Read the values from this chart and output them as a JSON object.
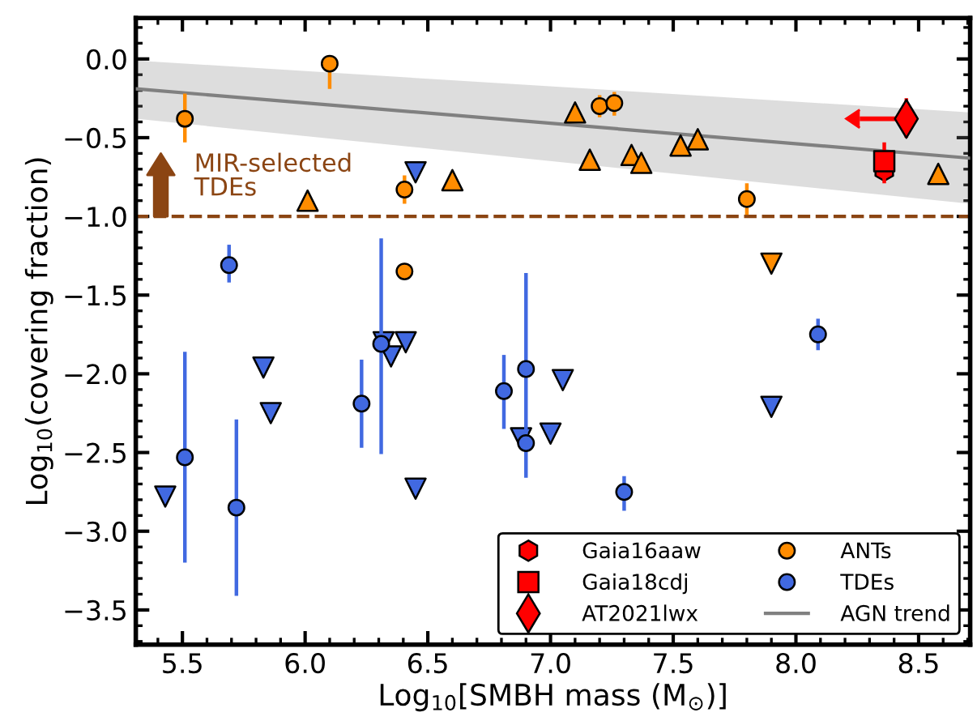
{
  "chart_data": {
    "type": "scatter",
    "xlabel": "Log$_{10}$[SMBH mass (M$_{⊙}$)]",
    "ylabel": "Log$_{10}$(covering fraction)",
    "xlim": [
      5.31,
      8.71
    ],
    "ylim": [
      -3.72,
      0.26
    ],
    "xticks": [
      {
        "value": 5.5,
        "label": "5.5"
      },
      {
        "value": 6.0,
        "label": "6.0"
      },
      {
        "value": 6.5,
        "label": "6.5"
      },
      {
        "value": 7.0,
        "label": "7.0"
      },
      {
        "value": 7.5,
        "label": "7.5"
      },
      {
        "value": 8.0,
        "label": "8.0"
      },
      {
        "value": 8.5,
        "label": "8.5"
      }
    ],
    "yticks": [
      {
        "value": 0.0,
        "label": "0.0"
      },
      {
        "value": -0.5,
        "label": "−0.5"
      },
      {
        "value": -1.0,
        "label": "−1.0"
      },
      {
        "value": -1.5,
        "label": "−1.5"
      },
      {
        "value": -2.0,
        "label": "−2.0"
      },
      {
        "value": -2.5,
        "label": "−2.5"
      },
      {
        "value": -3.0,
        "label": "−3.0"
      },
      {
        "value": -3.5,
        "label": "−3.5"
      }
    ],
    "grid": false,
    "legend": "bottom right",
    "ref_lines": [
      {
        "axis": "y",
        "value": -1.0,
        "label": "MIR-selected\nTDEs",
        "color": "#8b4513",
        "line_style": "dashed"
      }
    ],
    "series": [
      {
        "name": "AGN trend",
        "type": "line",
        "color": "#808080",
        "marker": "none",
        "line_style": "solid",
        "x": [
          5.31,
          8.71
        ],
        "values": [
          -0.19,
          -0.63
        ],
        "lower": [
          -0.38,
          -0.92
        ],
        "upper": [
          -0.01,
          -0.34
        ]
      },
      {
        "color": "#ff8c00",
        "marker": "triangle",
        "x": [
          6.01,
          6.6,
          7.1,
          7.16,
          7.33,
          7.37,
          7.53,
          7.6,
          8.58
        ],
        "values": [
          -0.9,
          -0.77,
          -0.34,
          -0.64,
          -0.61,
          -0.66,
          -0.55,
          -0.51,
          -0.73
        ]
      },
      {
        "color": "#ff8c00",
        "marker": "triangle_down",
        "x": [
          7.9
        ],
        "values": [
          -1.3
        ]
      },
      {
        "color": "#4169e1",
        "marker": "triangle_down",
        "x": [
          5.43,
          5.83,
          5.86,
          6.32,
          6.35,
          6.41,
          6.45,
          6.45,
          6.88,
          7.0,
          7.05,
          7.9
        ],
        "values": [
          -2.78,
          -1.96,
          -2.25,
          -1.8,
          -1.89,
          -1.8,
          -2.73,
          -0.72,
          -2.41,
          -2.38,
          -2.04,
          -2.21
        ]
      },
      {
        "name": "Gaia16aaw",
        "color": "#ff0000",
        "x": [
          8.36
        ],
        "values": [
          -0.71
        ]
      },
      {
        "name": "Gaia18cdj",
        "color": "#ff0000",
        "marker": "square",
        "x": [
          8.36
        ],
        "values": [
          -0.65
        ],
        "errors": [
          [
            -0.79,
            -0.53
          ]
        ]
      },
      {
        "name": "AT2021lwx",
        "color": "#ff0000",
        "marker": "diamond",
        "x": [
          8.45
        ],
        "values": [
          -0.38
        ],
        "errors": [
          [
            -0.5,
            -0.25
          ]
        ],
        "xerrors": [
          [
            8.26,
            8.45
          ]
        ]
      },
      {
        "name": "ANTs",
        "color": "#ff8c00",
        "marker": "circle",
        "x": [
          5.51,
          6.1,
          6.405,
          6.405,
          7.2,
          7.26,
          7.8
        ],
        "values": [
          -0.38,
          -0.03,
          -0.83,
          -1.35,
          -0.3,
          -0.28,
          -0.89
        ],
        "errors": [
          [
            -0.53,
            -0.22
          ],
          [
            -0.19,
            -0.03
          ],
          [
            -0.92,
            -0.74
          ],
          null,
          [
            -0.37,
            -0.23
          ],
          [
            -0.36,
            -0.21
          ],
          [
            -0.99,
            -0.79
          ]
        ]
      },
      {
        "name": "TDEs",
        "color": "#4169e1",
        "marker": "circle",
        "x": [
          5.69,
          5.51,
          5.72,
          6.23,
          6.31,
          6.81,
          6.9,
          6.9,
          7.3,
          8.09
        ],
        "values": [
          -1.31,
          -2.53,
          -2.85,
          -2.19,
          -1.81,
          -2.11,
          -1.97,
          -2.44,
          -2.75,
          -1.75
        ],
        "errors": [
          [
            -1.42,
            -1.18
          ],
          [
            -3.2,
            -1.86
          ],
          [
            -3.41,
            -2.29
          ],
          [
            -2.47,
            -1.91
          ],
          [
            -2.51,
            -1.14
          ],
          [
            -2.35,
            -1.88
          ],
          [
            -2.66,
            -1.36
          ],
          null,
          [
            -2.87,
            -2.65
          ],
          [
            -1.85,
            -1.65
          ]
        ]
      }
    ]
  }
}
